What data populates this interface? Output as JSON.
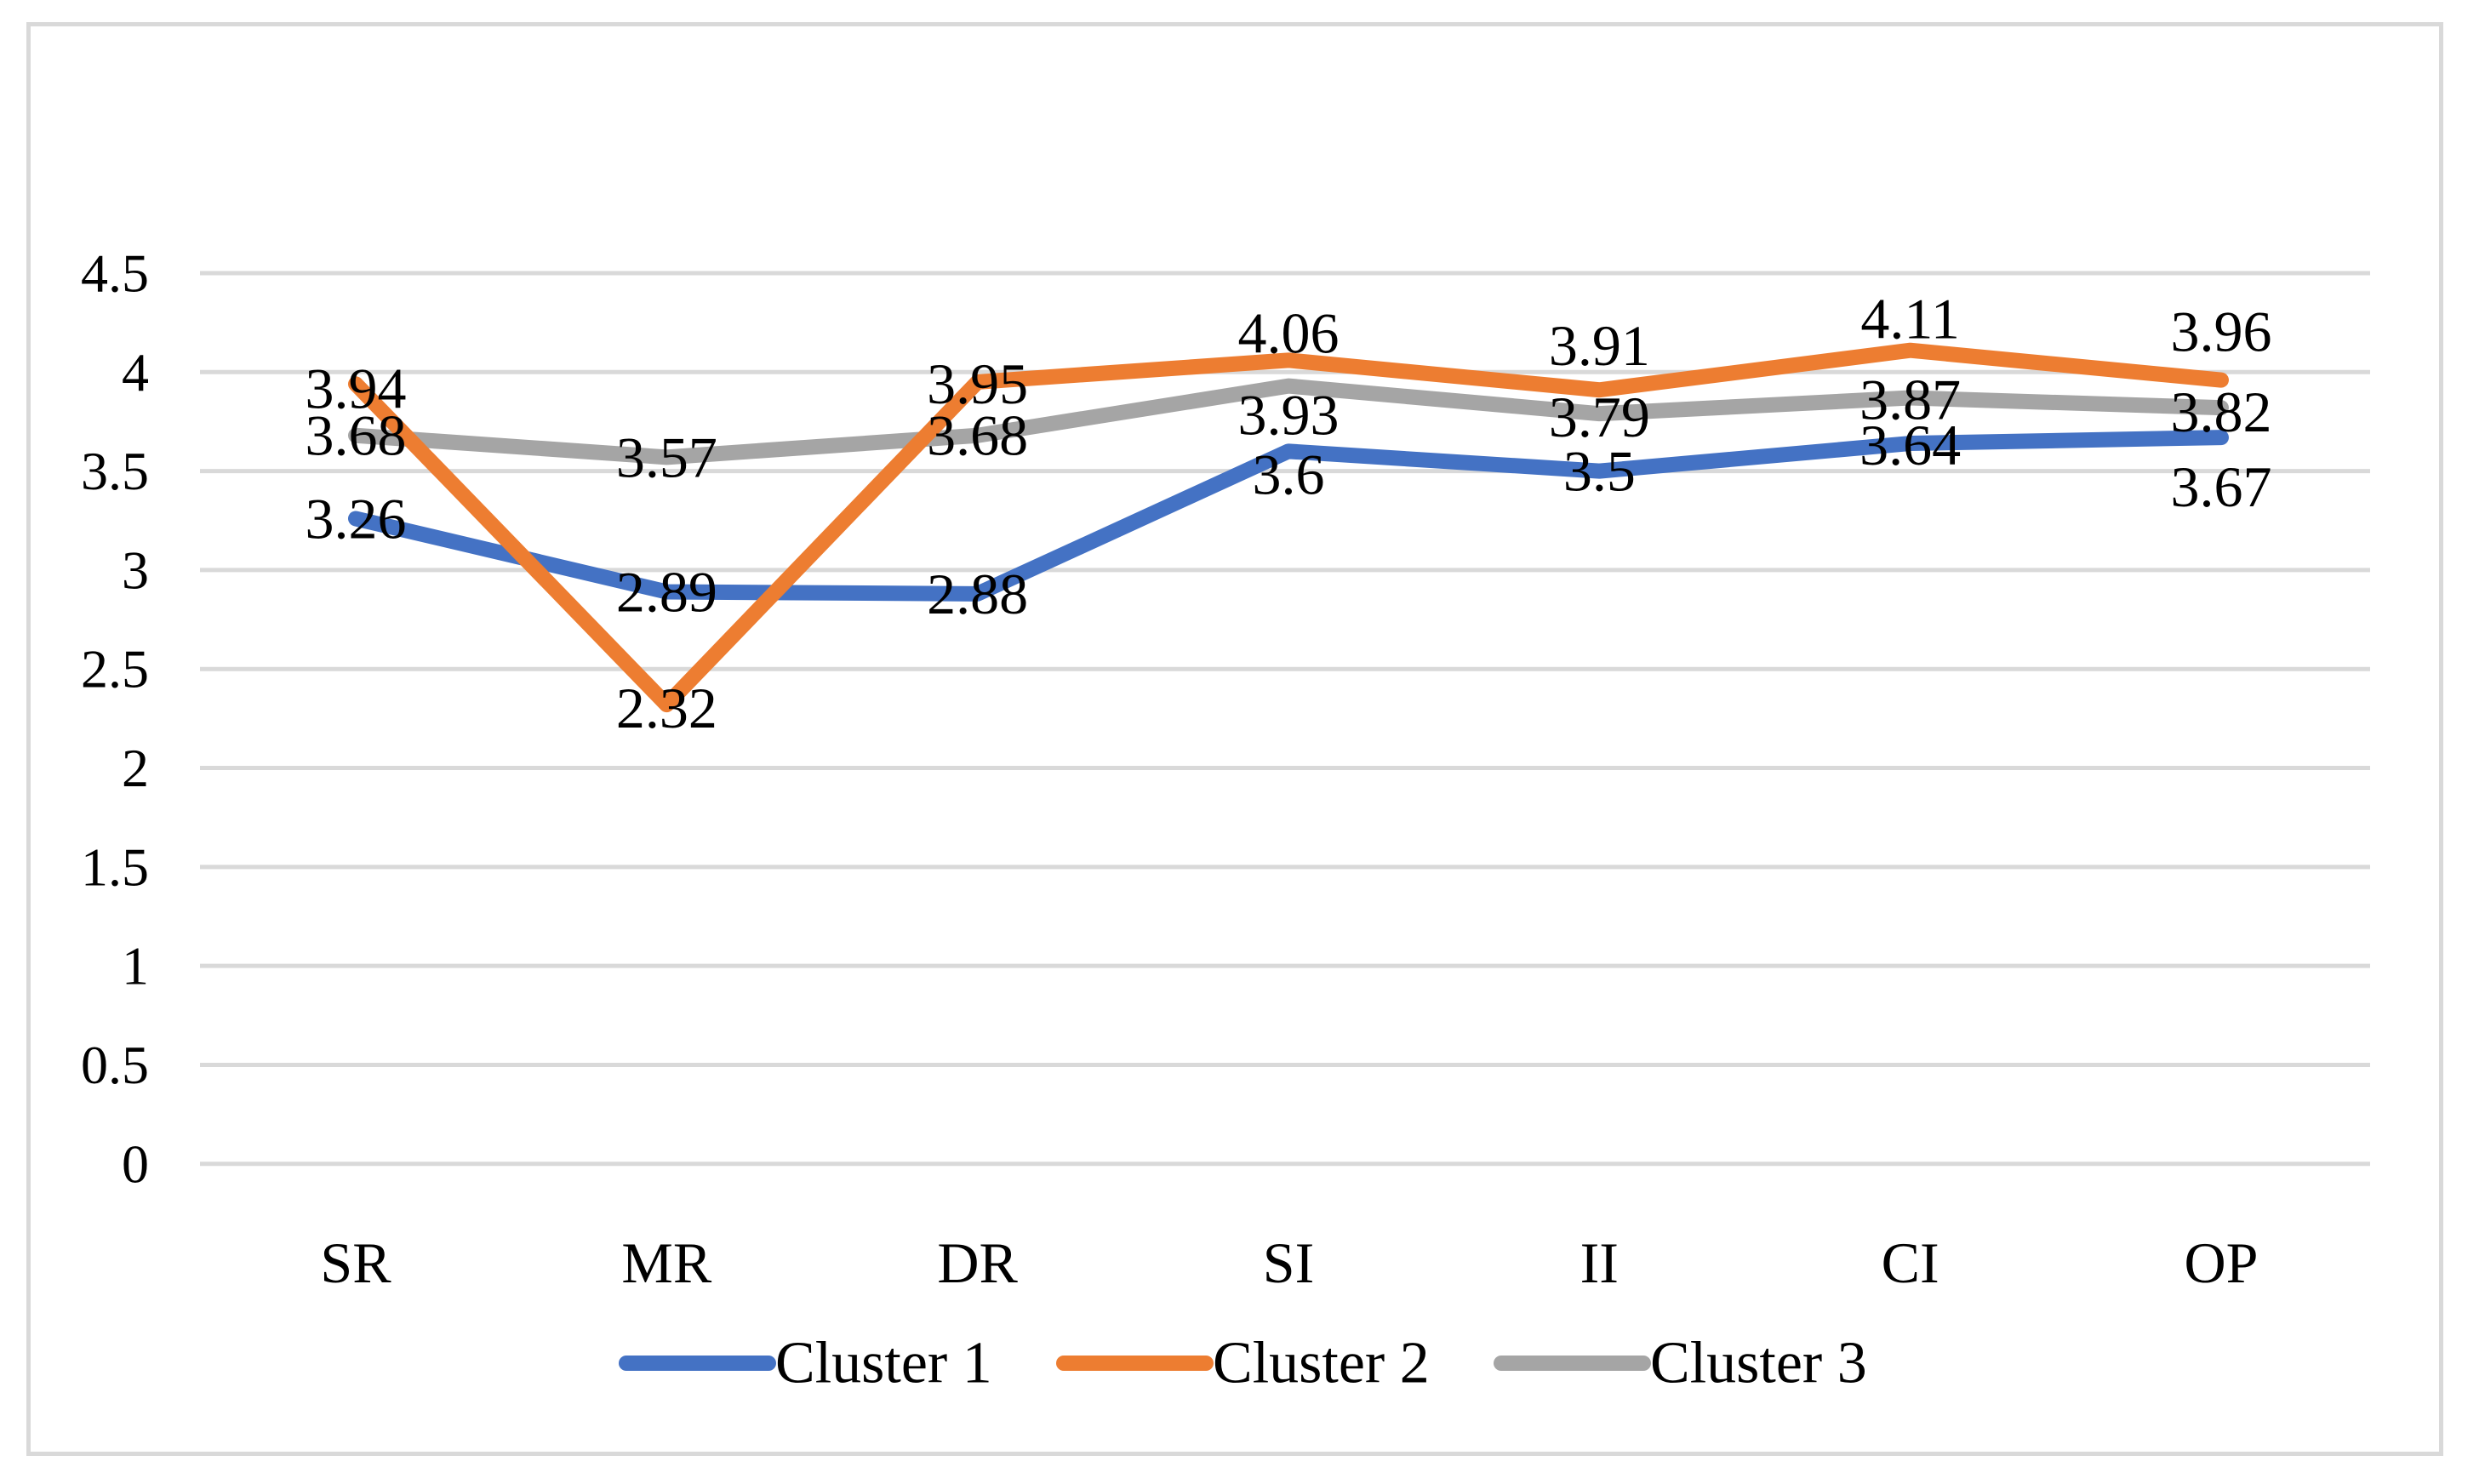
{
  "chart_data": {
    "type": "line",
    "title": "",
    "categories": [
      "SR",
      "MR",
      "DR",
      "SI",
      "II",
      "CI",
      "OP"
    ],
    "series": [
      {
        "name": "Cluster 1",
        "color": "#4472C4",
        "values": [
          3.26,
          2.89,
          2.88,
          3.6,
          3.5,
          3.64,
          3.67
        ]
      },
      {
        "name": "Cluster 2",
        "color": "#ED7D31",
        "values": [
          3.94,
          2.32,
          3.95,
          4.06,
          3.91,
          4.11,
          3.96
        ]
      },
      {
        "name": "Cluster 3",
        "color": "#A5A5A5",
        "values": [
          3.68,
          3.57,
          3.68,
          3.93,
          3.79,
          3.87,
          3.82
        ]
      }
    ],
    "y_axis": {
      "min": 0,
      "max": 4.5,
      "step": 0.5,
      "tick_labels": [
        "4.5",
        "4",
        "3.5",
        "3",
        "2.5",
        "2",
        "1.5",
        "1",
        "0.5",
        "0"
      ]
    },
    "grid": true,
    "data_labels": true,
    "legend_position": "bottom"
  },
  "style": {
    "background": "#FFFFFF",
    "border_color": "#D9D9D9",
    "gridline_color": "#D9D9D9",
    "text_color": "#000000"
  }
}
